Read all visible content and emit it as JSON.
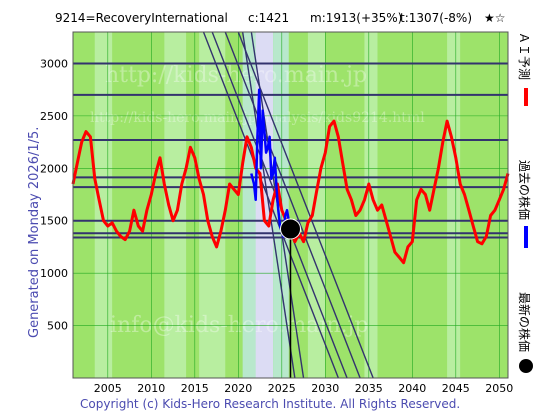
{
  "header": {
    "code_name": "9214=RecoveryInternational",
    "current": "c:1421",
    "max": "m:1913(+35%)",
    "target": "t:1307(-8%)",
    "rating": "★☆"
  },
  "side_label": "Generated on Monday 2026/1/5.",
  "legend": [
    {
      "label": "ＡＩ予測",
      "color": "#ff0000"
    },
    {
      "label": "過去の株価",
      "color": "#0000ff"
    },
    {
      "label": "最新の株価",
      "color": "#000000"
    }
  ],
  "watermarks": [
    "http://kids-hero.main.jp",
    "http://kids-hero.main.jp/analysis/kids9214.html",
    "info@kids-hero.main.jp"
  ],
  "copyright": "Copyright (c) Kids-Hero Research Institute. All Rights Reserved.",
  "colors": {
    "background_green": "#9de36a",
    "band_light_green": "#b8eea0",
    "band_teal": "#b8e8cc",
    "band_lavender": "#dcdcf4",
    "grid_green": "#22aa22",
    "hline_navy": "#33336e",
    "prediction_red": "#ff0000",
    "past_blue": "#0000ff"
  },
  "chart_data": {
    "type": "line",
    "xlim": [
      2001.0,
      2051.0
    ],
    "ylim": [
      0,
      3300
    ],
    "x_ticks": [
      2005,
      2010,
      2015,
      2020,
      2025,
      2030,
      2035,
      2040,
      2045,
      2050
    ],
    "y_ticks": [
      500,
      1000,
      1500,
      2000,
      2500,
      3000
    ],
    "grid": true,
    "horizontal_levels": [
      3000,
      2700,
      2270,
      1913,
      1820,
      1500,
      1380,
      1340
    ],
    "trend_lines": [
      {
        "x": [
          2016.0,
          2031.5
        ],
        "y": [
          3300,
          0
        ]
      },
      {
        "x": [
          2017.0,
          2032.5
        ],
        "y": [
          3300,
          0
        ]
      },
      {
        "x": [
          2018.5,
          2034.0
        ],
        "y": [
          3300,
          0
        ]
      },
      {
        "x": [
          2020.0,
          2035.5
        ],
        "y": [
          3300,
          0
        ]
      },
      {
        "x": [
          2020.5,
          2026.5
        ],
        "y": [
          3300,
          0
        ]
      },
      {
        "x": [
          2021.5,
          2027.5
        ],
        "y": [
          3300,
          0
        ]
      }
    ],
    "latest_point": {
      "x": 2026.0,
      "y": 1421
    },
    "series": [
      {
        "name": "ＡＩ予測",
        "color": "#ff0000",
        "x": [
          2001.0,
          2001.5,
          2002.0,
          2002.5,
          2003.0,
          2003.5,
          2004.0,
          2004.5,
          2005.0,
          2005.5,
          2006.0,
          2006.5,
          2007.0,
          2007.5,
          2008.0,
          2008.5,
          2009.0,
          2009.5,
          2010.0,
          2010.5,
          2011.0,
          2011.5,
          2012.0,
          2012.5,
          2013.0,
          2013.5,
          2014.0,
          2014.5,
          2015.0,
          2015.5,
          2016.0,
          2016.5,
          2017.0,
          2017.5,
          2018.0,
          2018.5,
          2019.0,
          2019.5,
          2020.0,
          2020.5,
          2021.0,
          2021.5,
          2022.0,
          2022.5,
          2023.0,
          2023.5,
          2024.0,
          2024.5,
          2025.0,
          2025.5,
          2026.0,
          2026.5,
          2027.0,
          2027.5,
          2028.0,
          2028.5,
          2029.0,
          2029.5,
          2030.0,
          2030.5,
          2031.0,
          2031.5,
          2032.0,
          2032.5,
          2033.0,
          2033.5,
          2034.0,
          2034.5,
          2035.0,
          2035.5,
          2036.0,
          2036.5,
          2037.0,
          2037.5,
          2038.0,
          2038.5,
          2039.0,
          2039.5,
          2040.0,
          2040.5,
          2041.0,
          2041.5,
          2042.0,
          2042.5,
          2043.0,
          2043.5,
          2044.0,
          2044.5,
          2045.0,
          2045.5,
          2046.0,
          2046.5,
          2047.0,
          2047.5,
          2048.0,
          2048.5,
          2049.0,
          2049.5,
          2050.0,
          2050.5,
          2051.0
        ],
        "y": [
          1850,
          2050,
          2250,
          2350,
          2300,
          1900,
          1700,
          1500,
          1450,
          1480,
          1400,
          1350,
          1320,
          1400,
          1600,
          1450,
          1400,
          1600,
          1750,
          1950,
          2100,
          1850,
          1650,
          1500,
          1600,
          1850,
          2000,
          2200,
          2100,
          1900,
          1750,
          1500,
          1350,
          1250,
          1400,
          1600,
          1850,
          1800,
          1750,
          2050,
          2300,
          2200,
          2000,
          1950,
          1500,
          1450,
          1700,
          1850,
          1600,
          1500,
          1420,
          1300,
          1380,
          1300,
          1480,
          1550,
          1780,
          2000,
          2150,
          2400,
          2450,
          2300,
          2050,
          1800,
          1700,
          1550,
          1600,
          1700,
          1850,
          1700,
          1600,
          1650,
          1500,
          1350,
          1200,
          1150,
          1100,
          1250,
          1300,
          1700,
          1800,
          1750,
          1600,
          1800,
          2000,
          2250,
          2450,
          2300,
          2100,
          1850,
          1750,
          1600,
          1450,
          1300,
          1280,
          1350,
          1550,
          1600,
          1700,
          1800,
          1950
        ]
      },
      {
        "name": "過去の株価",
        "color": "#0000ff",
        "x": [
          2021.5,
          2021.8,
          2022.0,
          2022.2,
          2022.4,
          2022.6,
          2022.8,
          2023.0,
          2023.2,
          2023.4,
          2023.6,
          2023.8,
          2024.0,
          2024.2,
          2024.4,
          2024.6,
          2024.8,
          2025.0,
          2025.2,
          2025.4,
          2025.6,
          2025.8,
          2026.0
        ],
        "y": [
          1950,
          1850,
          1700,
          2300,
          2750,
          2000,
          2550,
          2350,
          2150,
          2200,
          2300,
          1900,
          1950,
          2100,
          1800,
          1600,
          1450,
          1400,
          1350,
          1550,
          1600,
          1500,
          1421
        ]
      }
    ]
  }
}
